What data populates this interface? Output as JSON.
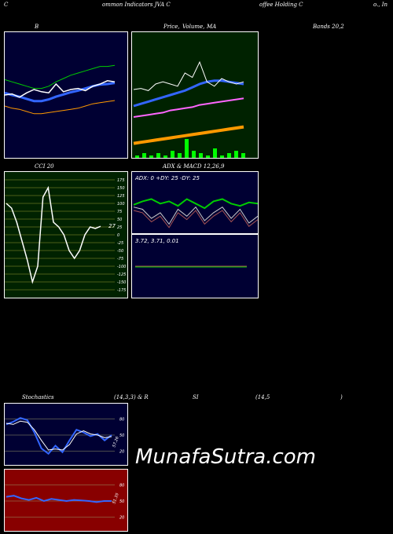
{
  "header": {
    "c1": "C",
    "c2": "ommon  Indicators JVA C",
    "c3": "offee  Holding C",
    "c4": "o., In"
  },
  "panel_titles": {
    "bollinger": "B",
    "price": "Price,",
    "price2": "Volume,",
    "ma": "MA",
    "bands": "Bands 20,2",
    "cci": "CCI 20",
    "adx_macd": "ADX   & MACD 12,26,9",
    "stoch": "Stochastics",
    "stoch_params": "(14,3,3) & R",
    "si": "SI",
    "si_params": "(14,5",
    "close_paren": ")"
  },
  "watermark": "MunafaSutra.com",
  "colors": {
    "navy": "#000033",
    "darkgreen": "#002200",
    "cci_bg": "#002200",
    "rsi_bg": "#880000",
    "white": "#ffffff",
    "blue": "#3366ff",
    "green_line": "#00cc00",
    "orange": "#ff9900",
    "pink": "#ff66ff"
  },
  "chart_data": [
    {
      "type": "line",
      "name": "Bollinger Bands",
      "series": [
        {
          "values": [
            64,
            62,
            60,
            58,
            56,
            56,
            58,
            62,
            65,
            68,
            70,
            72,
            74,
            76,
            76,
            77
          ]
        },
        {
          "values": [
            40,
            38,
            37,
            35,
            33,
            33,
            34,
            35,
            36,
            37,
            38,
            40,
            42,
            43,
            44,
            45
          ]
        },
        {
          "values": [
            50,
            51,
            48,
            52,
            55,
            53,
            52,
            60,
            53,
            55,
            56,
            54,
            58,
            60,
            63,
            62
          ]
        }
      ]
    },
    {
      "type": "line",
      "name": "Price Volume MA",
      "series": [
        {
          "values": [
            55,
            56,
            54,
            60,
            62,
            60,
            58,
            70,
            66,
            80,
            62,
            58,
            65,
            62,
            60,
            62
          ]
        },
        {
          "values": [
            40,
            42,
            44,
            46,
            48,
            50,
            52,
            54,
            57,
            60,
            62,
            63,
            63,
            62,
            61,
            60
          ]
        },
        {
          "values": [
            30,
            31,
            32,
            33,
            34,
            36,
            37,
            38,
            39,
            41,
            42,
            43,
            44,
            45,
            46,
            47
          ]
        },
        {
          "values": [
            6,
            7,
            8,
            9,
            10,
            11,
            12,
            13,
            14,
            15,
            16,
            17,
            18,
            19,
            20,
            21
          ]
        }
      ],
      "volume": [
        1,
        2,
        1,
        2,
        1,
        3,
        2,
        8,
        3,
        2,
        1,
        4,
        1,
        2,
        3,
        2
      ]
    },
    {
      "type": "line",
      "name": "CCI 20",
      "ylim": [
        -175,
        175
      ],
      "yticks": [
        175,
        150,
        125,
        100,
        75,
        50,
        25,
        0,
        -25,
        -50,
        -75,
        -100,
        -125,
        -150,
        -175
      ],
      "values": [
        100,
        85,
        40,
        -20,
        -80,
        -150,
        -100,
        120,
        150,
        40,
        25,
        0,
        -50,
        -75,
        -50,
        0,
        25,
        20,
        27
      ],
      "last_label": "27"
    },
    {
      "type": "line",
      "name": "ADX & MACD",
      "adx_label": "ADX: 0   +DY: 25  -DY: 25",
      "macd_label": "3.72,  3.71,  0.01",
      "series": [
        {
          "values": [
            25,
            28,
            30,
            26,
            28,
            24,
            30,
            26,
            22,
            28,
            30,
            26,
            24,
            27,
            26
          ]
        },
        {
          "values": [
            20,
            18,
            10,
            15,
            5,
            18,
            12,
            20,
            8,
            15,
            20,
            10,
            18,
            6,
            12
          ]
        }
      ]
    },
    {
      "type": "line",
      "name": "Stochastics",
      "yticks": [
        80,
        50,
        20
      ],
      "series": [
        {
          "values": [
            70,
            75,
            82,
            78,
            55,
            25,
            15,
            30,
            18,
            40,
            60,
            55,
            48,
            52,
            40,
            50
          ]
        },
        {
          "values": [
            72,
            70,
            76,
            74,
            60,
            40,
            22,
            24,
            22,
            32,
            52,
            58,
            52,
            50,
            45,
            47
          ]
        }
      ],
      "last_label": "57.26"
    },
    {
      "type": "line",
      "name": "RSI",
      "yticks": [
        80,
        50,
        20
      ],
      "series": [
        {
          "values": [
            58,
            60,
            55,
            52,
            56,
            50,
            54,
            52,
            50,
            52,
            51,
            50,
            48,
            50,
            50
          ]
        }
      ],
      "last_label": "51.35"
    }
  ]
}
